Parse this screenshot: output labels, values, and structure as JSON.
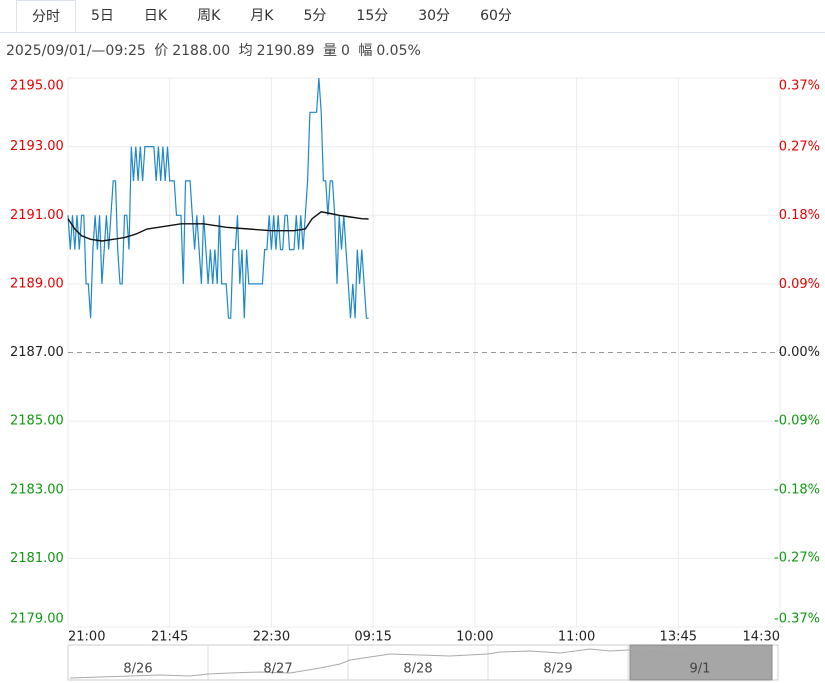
{
  "tabs": [
    "分时",
    "5日",
    "日K",
    "周K",
    "月K",
    "5分",
    "15分",
    "30分",
    "60分"
  ],
  "info": {
    "datetime": "2025/09/01/—09:25",
    "price_label": "价",
    "price": "2188.00",
    "avg_label": "均",
    "avg": "2190.89",
    "vol_label": "量",
    "vol": "0",
    "range_label": "幅",
    "range": "0.05%"
  },
  "chart_data": {
    "type": "line",
    "xlim": [
      0,
      315
    ],
    "xticks": [
      {
        "value": 0,
        "label": "21:00"
      },
      {
        "value": 45,
        "label": "21:45"
      },
      {
        "value": 90,
        "label": "22:30"
      },
      {
        "value": 135,
        "label": "09:15"
      },
      {
        "value": 180,
        "label": "10:00"
      },
      {
        "value": 225,
        "label": "11:00"
      },
      {
        "value": 270,
        "label": "13:45"
      },
      {
        "value": 315,
        "label": "14:30"
      }
    ],
    "ylim": [
      2179,
      2195
    ],
    "yticks": [
      {
        "value": 2195,
        "label": "2195.00"
      },
      {
        "value": 2193,
        "label": "2193.00"
      },
      {
        "value": 2191,
        "label": "2191.00"
      },
      {
        "value": 2189,
        "label": "2189.00"
      },
      {
        "value": 2187,
        "label": "2187.00"
      },
      {
        "value": 2185,
        "label": "2185.00"
      },
      {
        "value": 2183,
        "label": "2183.00"
      },
      {
        "value": 2181,
        "label": "2181.00"
      },
      {
        "value": 2179,
        "label": "2179.00"
      }
    ],
    "y2lim": [
      -0.366,
      0.366
    ],
    "y2ticks": [
      {
        "value": 0.366,
        "label": "0.37%"
      },
      {
        "value": 0.274,
        "label": "0.27%"
      },
      {
        "value": 0.183,
        "label": "0.18%"
      },
      {
        "value": 0.091,
        "label": "0.09%"
      },
      {
        "value": 0,
        "label": "0.00%"
      },
      {
        "value": -0.091,
        "label": "-0.09%"
      },
      {
        "value": -0.183,
        "label": "-0.18%"
      },
      {
        "value": -0.274,
        "label": "-0.27%"
      },
      {
        "value": -0.366,
        "label": "-0.37%"
      }
    ],
    "baseline": 2187,
    "grid": true,
    "up_color": "#e60000",
    "down_color": "#109910",
    "flat_color": "#222222",
    "series": [
      {
        "color": "#1e88c8",
        "x": [
          0,
          1,
          2,
          3,
          4,
          5,
          6,
          7,
          8,
          9,
          10,
          11,
          12,
          13,
          14,
          15,
          16,
          17,
          18,
          19,
          20,
          21,
          22,
          23,
          24,
          25,
          26,
          27,
          28,
          29,
          30,
          31,
          32,
          33,
          34,
          35,
          36,
          37,
          38,
          39,
          40,
          41,
          42,
          43,
          44,
          45,
          46,
          47,
          48,
          49,
          50,
          51,
          52,
          53,
          54,
          55,
          56,
          57,
          58,
          59,
          60,
          61,
          62,
          63,
          64,
          65,
          66,
          67,
          68,
          69,
          70,
          71,
          72,
          73,
          74,
          75,
          76,
          77,
          78,
          79,
          80,
          81,
          82,
          83,
          84,
          85,
          86,
          87,
          88,
          89,
          90,
          91,
          92,
          93,
          94,
          95,
          96,
          97,
          98,
          99,
          100,
          101,
          102,
          103,
          104,
          105,
          106,
          107,
          108,
          109,
          110,
          111,
          112,
          113,
          114,
          115,
          116,
          117,
          118,
          119,
          120,
          121,
          122,
          123,
          124,
          125,
          126,
          127,
          128,
          129,
          130,
          131,
          132,
          133
        ],
        "values": [
          2191,
          2190,
          2191,
          2190,
          2191,
          2190,
          2191,
          2191,
          2189,
          2189,
          2188,
          2190,
          2191,
          2190,
          2191,
          2189,
          2190,
          2191,
          2190,
          2191,
          2192,
          2192,
          2190,
          2189,
          2189,
          2191,
          2191,
          2190,
          2193,
          2192,
          2193,
          2192,
          2193,
          2192,
          2193,
          2193,
          2193,
          2193,
          2193,
          2192,
          2193,
          2192,
          2193,
          2192,
          2193,
          2192,
          2192,
          2192,
          2191,
          2191,
          2191,
          2189,
          2192,
          2192,
          2192,
          2191,
          2190,
          2191,
          2190,
          2189,
          2191,
          2190,
          2189,
          2190,
          2189,
          2190,
          2189,
          2191,
          2189,
          2189,
          2189,
          2188,
          2188,
          2190,
          2190,
          2191,
          2189,
          2190,
          2188,
          2190,
          2189,
          2189,
          2189,
          2189,
          2189,
          2189,
          2189,
          2190,
          2190,
          2191,
          2190,
          2191,
          2190,
          2191,
          2190,
          2190,
          2191,
          2191,
          2190,
          2190,
          2190,
          2191,
          2190,
          2191,
          2190,
          2191,
          2192,
          2194,
          2194,
          2194,
          2194,
          2195,
          2194,
          2192,
          2192,
          2191,
          2192,
          2192,
          2191,
          2189,
          2191,
          2190,
          2191,
          2190,
          2189,
          2188,
          2189,
          2188,
          2190,
          2189,
          2190,
          2189,
          2188,
          2188
        ]
      },
      {
        "color": "#111111",
        "x": [
          0,
          3,
          6,
          10,
          15,
          20,
          25,
          30,
          35,
          40,
          50,
          60,
          70,
          80,
          90,
          100,
          105,
          108,
          112,
          116,
          120,
          125,
          130,
          133
        ],
        "values": [
          2190.9,
          2190.6,
          2190.4,
          2190.3,
          2190.25,
          2190.3,
          2190.35,
          2190.45,
          2190.6,
          2190.65,
          2190.75,
          2190.75,
          2190.65,
          2190.6,
          2190.55,
          2190.55,
          2190.6,
          2190.9,
          2191.1,
          2191.05,
          2191.0,
          2190.95,
          2190.9,
          2190.89
        ]
      }
    ]
  },
  "navigator": {
    "dates": [
      "8/26",
      "8/27",
      "8/28",
      "8/29",
      "9/1"
    ]
  }
}
